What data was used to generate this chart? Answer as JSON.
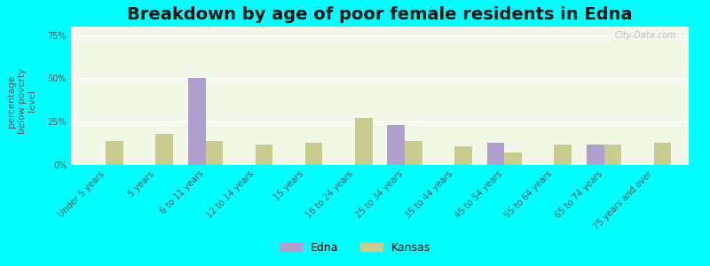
{
  "title": "Breakdown by age of poor female residents in Edna",
  "ylabel": "percentage\nbelow poverty\nlevel",
  "categories": [
    "Under 5 years",
    "5 years",
    "6 to 11 years",
    "12 to 14 years",
    "15 years",
    "18 to 24 years",
    "25 to 34 years",
    "35 to 44 years",
    "45 to 54 years",
    "55 to 64 years",
    "65 to 74 years",
    "75 years and over"
  ],
  "edna_values": [
    0,
    0,
    50,
    0,
    0,
    0,
    23,
    0,
    13,
    0,
    12,
    0
  ],
  "kansas_values": [
    14,
    18,
    14,
    12,
    13,
    27,
    14,
    11,
    7,
    12,
    12,
    13
  ],
  "edna_color": "#b09fcc",
  "kansas_color": "#c8cc8f",
  "plot_bg_color": "#f2f7e8",
  "outer_bg_color": "#00ffff",
  "ylim": [
    0,
    80
  ],
  "yticks": [
    0,
    25,
    50,
    75
  ],
  "ytick_labels": [
    "0%",
    "25%",
    "50%",
    "75%"
  ],
  "title_fontsize": 14,
  "ylabel_fontsize": 7.5,
  "tick_fontsize": 7,
  "legend_fontsize": 9,
  "bar_width": 0.35,
  "watermark": "City-Data.com"
}
